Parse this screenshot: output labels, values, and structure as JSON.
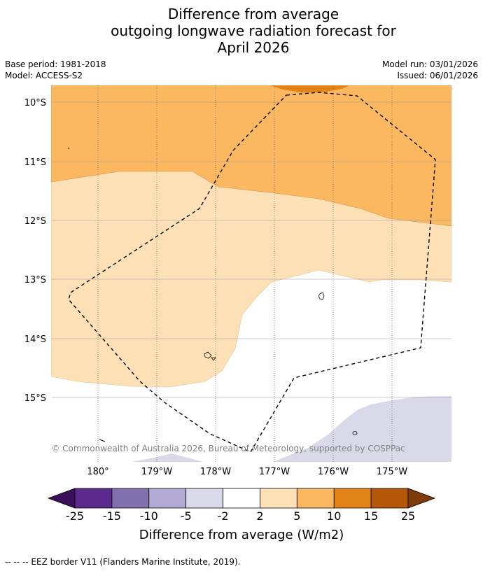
{
  "title": {
    "line1": "Difference from average",
    "line2": "outgoing longwave radiation forecast for",
    "line3": "April 2026"
  },
  "meta": {
    "base_period": "Base period: 1981-2018",
    "model": "Model: ACCESS-S2",
    "model_run": "Model run: 03/01/2026",
    "issued": "Issued: 06/01/2026"
  },
  "map": {
    "lat_labels": [
      "10°S",
      "11°S",
      "12°S",
      "13°S",
      "14°S",
      "15°S"
    ],
    "lon_labels": [
      "180°",
      "179°W",
      "178°W",
      "177°W",
      "176°W",
      "175°W"
    ],
    "copyright": "© Commonwealth of Australia 2026, Bureau of Meteorology, supported by COSPPac"
  },
  "colorbar": {
    "ticks": [
      "-25",
      "-15",
      "-10",
      "-5",
      "-2",
      "2",
      "5",
      "10",
      "15",
      "25"
    ],
    "colors": [
      "#3b0f5c",
      "#5b2a8c",
      "#8070ae",
      "#b3aad3",
      "#d9d9ea",
      "#ffffff",
      "#fde0b6",
      "#fcb860",
      "#e28318",
      "#b35808",
      "#7f3b08"
    ],
    "label": "Difference from average (W/m2)"
  },
  "footer": {
    "legend": "--  --  -- EEZ border V11 (Flanders Marine Institute, 2019)."
  }
}
